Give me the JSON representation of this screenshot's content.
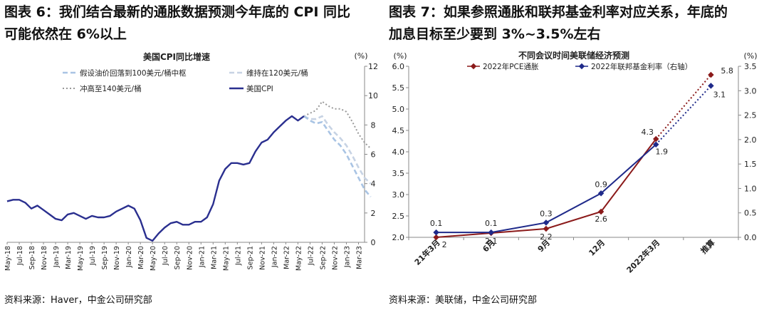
{
  "figures": [
    {
      "heading_line1": "图表 6：我们结合最新的通胀数据预测今年底的 CPI 同比",
      "heading_line2": "可能依然在 6%以上",
      "source": "资料来源：Haver，中金公司研究部"
    },
    {
      "heading_line1": "图表 7：如果参照通胀和联邦基金利率对应关系，年底的",
      "heading_line2": "加息目标至少要到 3%~3.5%左右",
      "source": "资料来源：美联储，中金公司研究部"
    }
  ],
  "chart_data": [
    {
      "type": "line",
      "title": "美国CPI同比增速",
      "unit_right": "(%)",
      "ylim": [
        0,
        12
      ],
      "yticks": [
        0,
        2,
        4,
        6,
        8,
        10,
        12
      ],
      "x_tick_labels": [
        "May-18",
        "Jul-18",
        "Sep-18",
        "Nov-18",
        "Jan-19",
        "Mar-19",
        "May-19",
        "Jul-19",
        "Sep-19",
        "Nov-19",
        "Jan-20",
        "Mar-20",
        "May-20",
        "Jul-20",
        "Sep-20",
        "Nov-20",
        "Jan-21",
        "Mar-21",
        "May-21",
        "Jul-21",
        "Sep-21",
        "Nov-21",
        "Jan-22",
        "Mar-22",
        "May-22",
        "Jul-22",
        "Sep-22",
        "Nov-22",
        "Jan-23",
        "Mar-23"
      ],
      "legend": [
        "假设油价回落到100美元/桶中枢",
        "维持在120美元/桶",
        "冲高至140美元/桶",
        "美国CPI"
      ],
      "series": [
        {
          "name": "美国CPI",
          "color": "#2a2f8f",
          "style": "solid",
          "start_index": 0,
          "values": [
            2.8,
            2.9,
            2.9,
            2.7,
            2.3,
            2.5,
            2.2,
            1.9,
            1.6,
            1.5,
            1.9,
            2.0,
            1.8,
            1.6,
            1.8,
            1.7,
            1.7,
            1.8,
            2.1,
            2.3,
            2.5,
            2.3,
            1.5,
            0.3,
            0.1,
            0.6,
            1.0,
            1.3,
            1.4,
            1.2,
            1.2,
            1.4,
            1.4,
            1.7,
            2.6,
            4.2,
            5.0,
            5.4,
            5.4,
            5.3,
            5.4,
            6.2,
            6.8,
            7.0,
            7.5,
            7.9,
            8.3,
            8.6,
            8.3,
            8.6
          ]
        },
        {
          "name": "假设油价回落到100美元/桶中枢",
          "color": "#a9c4e4",
          "style": "dash",
          "start_index": 49,
          "values": [
            8.6,
            8.3,
            8.1,
            8.2,
            7.6,
            7.0,
            6.6,
            6.0,
            5.2,
            4.4,
            3.6,
            3.1
          ]
        },
        {
          "name": "维持在120美元/桶",
          "color": "#c7d3e4",
          "style": "dash",
          "start_index": 49,
          "values": [
            8.6,
            8.4,
            8.4,
            8.6,
            8.0,
            7.5,
            7.1,
            6.6,
            5.9,
            5.1,
            4.4,
            4.0
          ]
        },
        {
          "name": "冲高至140美元/桶",
          "color": "#999999",
          "style": "dot",
          "start_index": 49,
          "values": [
            8.6,
            8.8,
            9.0,
            9.6,
            9.3,
            9.1,
            9.1,
            8.9,
            8.2,
            7.4,
            6.8,
            6.4
          ]
        }
      ]
    },
    {
      "type": "line",
      "title": "不同会议时间美联储经济预测",
      "unit_left": "(%)",
      "unit_right": "(%)",
      "categories": [
        "21年3月",
        "6月",
        "9月",
        "12月",
        "2022年3月",
        "推算"
      ],
      "ylim_left": [
        2.0,
        6.0
      ],
      "yticks_left": [
        "2.0",
        "2.5",
        "3.0",
        "3.5",
        "4.0",
        "4.5",
        "5.0",
        "5.5",
        "6.0"
      ],
      "ylim_right": [
        0.0,
        3.5
      ],
      "yticks_right": [
        "0.0",
        "0.5",
        "1.0",
        "1.5",
        "2.0",
        "2.5",
        "3.0",
        "3.5"
      ],
      "series": [
        {
          "name": "2022年PCE通胀",
          "axis": "left",
          "color": "#8b1a1a",
          "values": [
            2.0,
            2.1,
            2.2,
            2.6,
            4.3,
            5.8
          ],
          "labels": [
            "2",
            "2.1",
            "2.2",
            "2.6",
            "4.3",
            "5.8"
          ]
        },
        {
          "name": "2022年联邦基金利率（右轴）",
          "axis": "right",
          "color": "#1f2a8a",
          "values": [
            0.1,
            0.1,
            0.3,
            0.9,
            1.9,
            3.1
          ],
          "labels": [
            "0.1",
            "0.1",
            "0.3",
            "0.9",
            "1.9",
            "3.1"
          ]
        }
      ]
    }
  ]
}
